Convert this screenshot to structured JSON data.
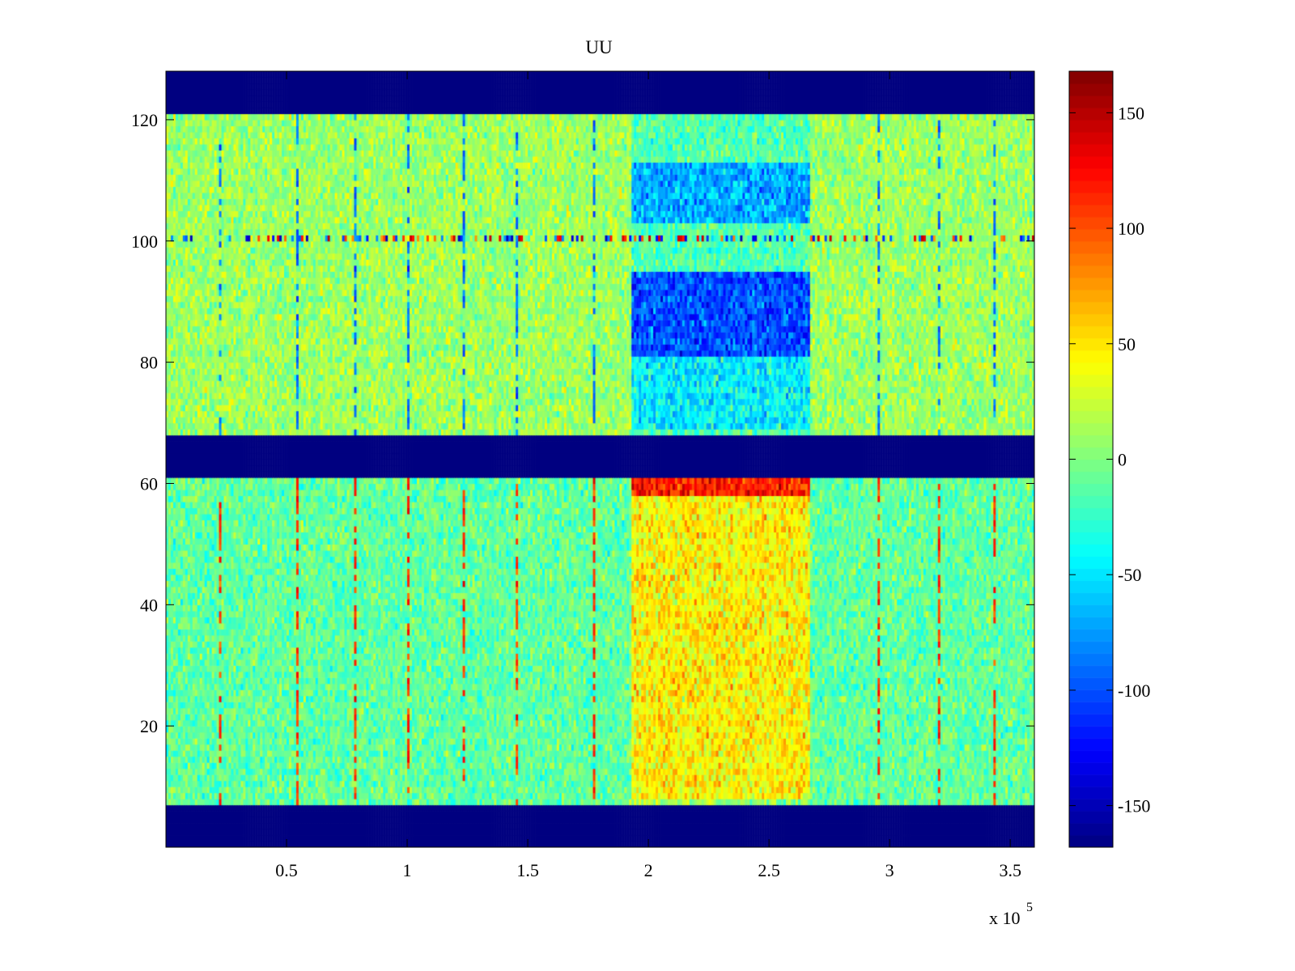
{
  "chart_data": {
    "type": "heatmap",
    "title": "UU",
    "xlabel": "",
    "ylabel": "",
    "x_exponent_label": "x 10",
    "x_exponent_power": "5",
    "xlim": [
      0,
      360000
    ],
    "ylim": [
      0,
      128
    ],
    "x_ticks": [
      50000,
      100000,
      150000,
      200000,
      250000,
      300000,
      350000
    ],
    "x_tick_labels": [
      "0.5",
      "1",
      "1.5",
      "2",
      "2.5",
      "3",
      "3.5"
    ],
    "y_ticks": [
      20,
      40,
      60,
      80,
      100,
      120
    ],
    "y_tick_labels": [
      "20",
      "40",
      "60",
      "80",
      "100",
      "120"
    ],
    "colormap": "jet",
    "clim": [
      -168,
      168
    ],
    "colorbar": {
      "ticks": [
        -150,
        -100,
        -50,
        0,
        50,
        100,
        150
      ],
      "tick_labels": [
        "-150",
        "-100",
        "-50",
        "0",
        "50",
        "100",
        "150"
      ],
      "placement": "right"
    },
    "masked_value": -168,
    "masked_row_bands": [
      [
        0,
        7
      ],
      [
        61,
        68
      ],
      [
        121,
        128
      ]
    ],
    "background": {
      "rows_8_to_60_mean": -10,
      "rows_69_to_120_mean": 10,
      "noise_amplitude": 25
    },
    "event_region": {
      "x_range": [
        193000,
        266000
      ],
      "rows_upper_block": [
        {
          "rows": [
            69,
            80
          ],
          "value": -45
        },
        {
          "rows": [
            81,
            94
          ],
          "value": -100
        },
        {
          "rows": [
            103,
            112
          ],
          "value": -70
        }
      ],
      "rows_lower_block": [
        {
          "rows": [
            58,
            61
          ],
          "value": 120
        },
        {
          "rows": [
            8,
            57
          ],
          "value": 45
        }
      ]
    },
    "bursty_row": {
      "row": 100,
      "amplitude": 150
    },
    "vertical_streaks_x": [
      22000,
      54000,
      78000,
      100000,
      123000,
      145000,
      177000,
      295000,
      320000,
      343000
    ]
  }
}
